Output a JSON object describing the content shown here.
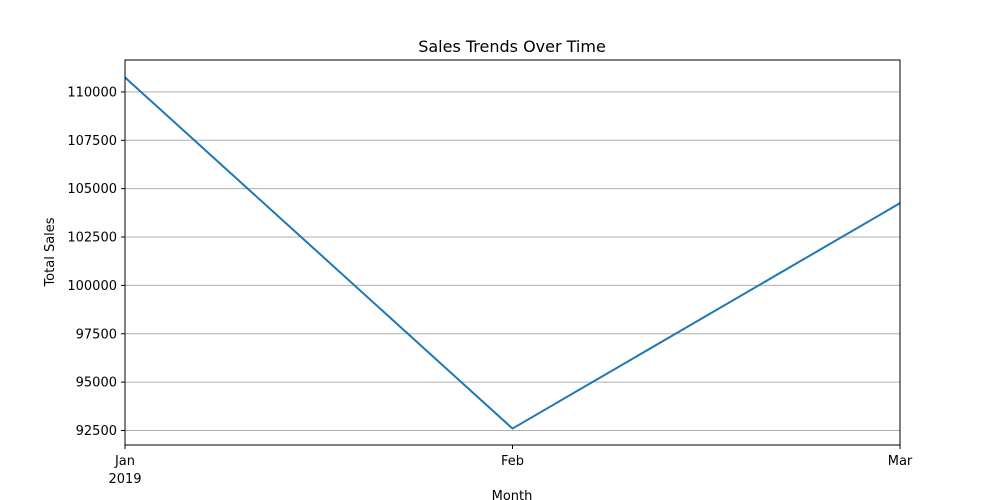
{
  "chart_data": {
    "type": "line",
    "title": "Sales Trends Over Time",
    "xlabel": "Month",
    "ylabel": "Total Sales",
    "x": [
      "2019-01",
      "2019-02",
      "2019-03"
    ],
    "x_tick_labels": [
      "Jan",
      "Feb",
      "Mar"
    ],
    "x_tick_year": "2019",
    "series": [
      {
        "values": [
          110750,
          92600,
          104250
        ],
        "color": "#1f77b4"
      }
    ],
    "ylim": [
      91750,
      111650
    ],
    "y_ticks": [
      92500,
      95000,
      97500,
      100000,
      102500,
      105000,
      107500,
      110000
    ],
    "grid": "y-major",
    "legend": "none"
  }
}
